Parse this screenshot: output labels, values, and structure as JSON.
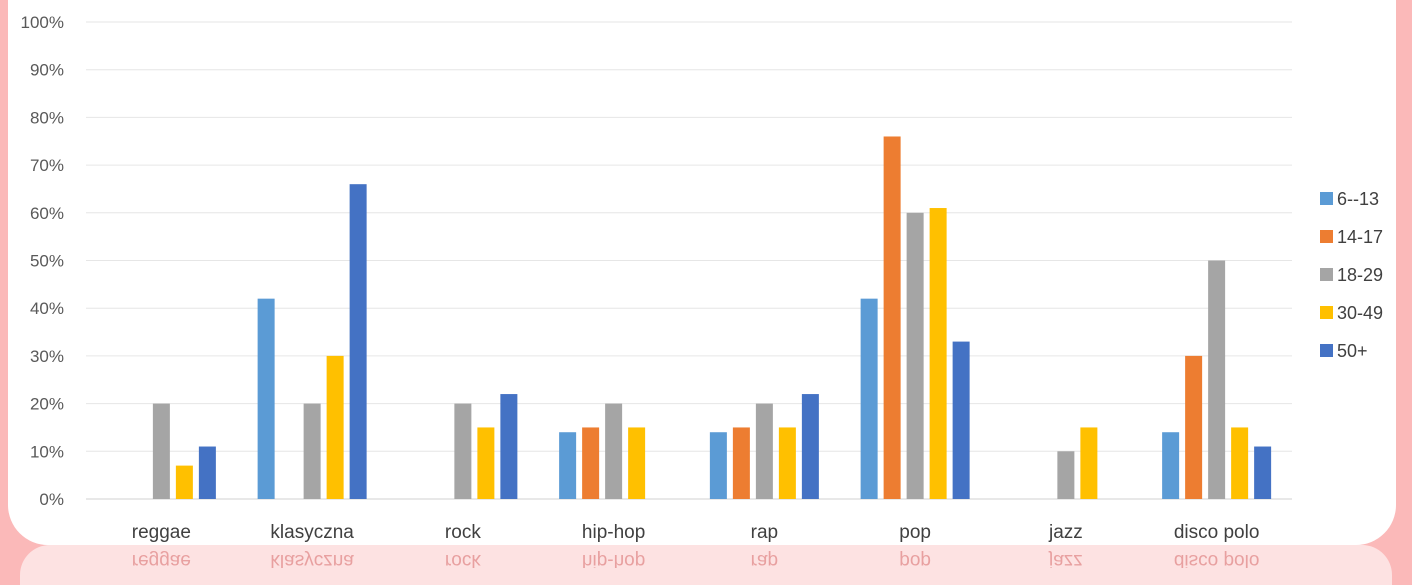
{
  "chart_data": {
    "type": "bar",
    "categories": [
      "reggae",
      "klasyczna",
      "rock",
      "hip-hop",
      "rap",
      "pop",
      "jazz",
      "disco polo"
    ],
    "series": [
      {
        "name": "6--13",
        "color": "#5b9bd5",
        "values": [
          0,
          42,
          0,
          14,
          14,
          42,
          0,
          14
        ]
      },
      {
        "name": "14-17",
        "color": "#ed7d31",
        "values": [
          0,
          0,
          0,
          15,
          15,
          76,
          0,
          30
        ]
      },
      {
        "name": "18-29",
        "color": "#a5a5a5",
        "values": [
          20,
          20,
          20,
          20,
          20,
          60,
          10,
          50
        ]
      },
      {
        "name": "30-49",
        "color": "#ffc000",
        "values": [
          7,
          30,
          15,
          15,
          15,
          61,
          15,
          15
        ]
      },
      {
        "name": "50+",
        "color": "#4472c4",
        "values": [
          11,
          66,
          22,
          0,
          22,
          33,
          0,
          11
        ]
      }
    ],
    "y_ticks": [
      "0%",
      "10%",
      "20%",
      "30%",
      "40%",
      "50%",
      "60%",
      "70%",
      "80%",
      "90%",
      "100%"
    ],
    "ylim": [
      0,
      100
    ],
    "y_unit": "%",
    "grid": true,
    "legend_position": "right"
  }
}
